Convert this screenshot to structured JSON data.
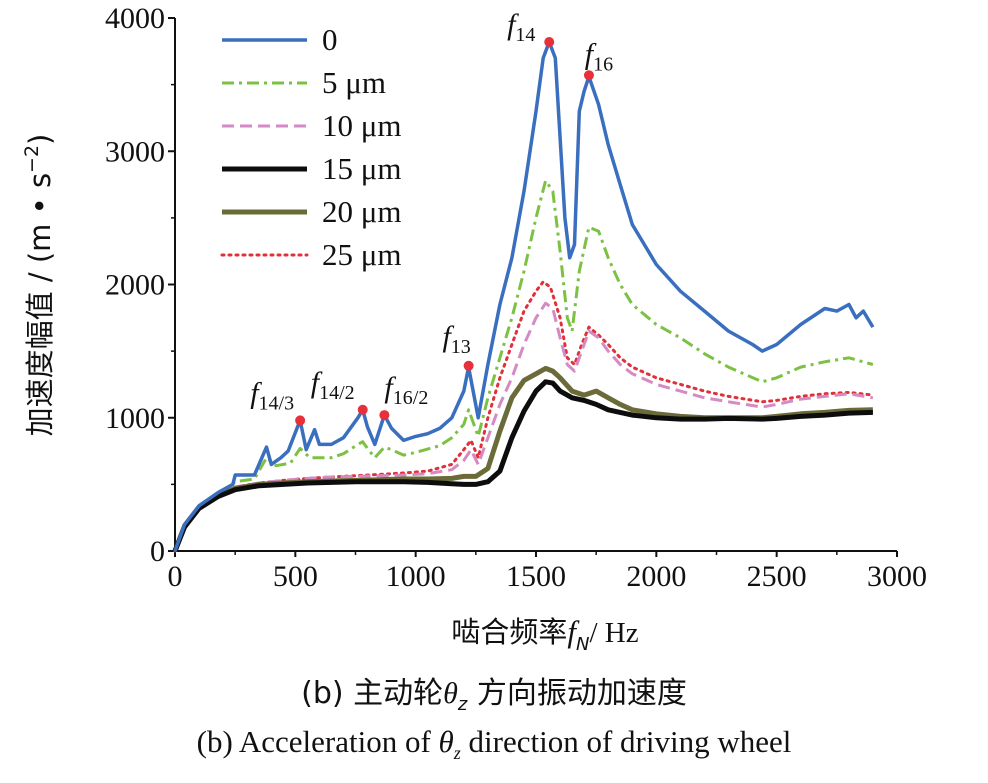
{
  "chart_data": {
    "type": "line",
    "xlabel": "啮合频率",
    "xlabel_var": "f",
    "xlabel_sub": "N",
    "xlabel_unit": "/ Hz",
    "ylabel": "加速度幅值 / (m • s",
    "ylabel_sup": "−2",
    "ylabel_end": ")",
    "xlim": [
      0,
      3000
    ],
    "ylim": [
      0,
      4000
    ],
    "xticks": [
      0,
      500,
      1000,
      1500,
      2000,
      2500,
      3000
    ],
    "yticks": [
      0,
      1000,
      2000,
      3000,
      4000
    ],
    "legend_position": "top-left",
    "grid": false,
    "series": [
      {
        "name": "0",
        "color": "#3a6fc0",
        "dash": "solid",
        "points": [
          [
            0,
            0
          ],
          [
            40,
            200
          ],
          [
            100,
            340
          ],
          [
            180,
            440
          ],
          [
            240,
            500
          ],
          [
            250,
            570
          ],
          [
            330,
            570
          ],
          [
            380,
            780
          ],
          [
            400,
            650
          ],
          [
            440,
            700
          ],
          [
            470,
            750
          ],
          [
            520,
            980
          ],
          [
            545,
            760
          ],
          [
            580,
            910
          ],
          [
            600,
            800
          ],
          [
            650,
            800
          ],
          [
            700,
            850
          ],
          [
            760,
            1000
          ],
          [
            780,
            1060
          ],
          [
            800,
            930
          ],
          [
            830,
            800
          ],
          [
            870,
            1020
          ],
          [
            900,
            920
          ],
          [
            950,
            830
          ],
          [
            1000,
            860
          ],
          [
            1050,
            880
          ],
          [
            1100,
            920
          ],
          [
            1150,
            1000
          ],
          [
            1200,
            1200
          ],
          [
            1220,
            1380
          ],
          [
            1260,
            1000
          ],
          [
            1300,
            1400
          ],
          [
            1350,
            1850
          ],
          [
            1400,
            2200
          ],
          [
            1450,
            2700
          ],
          [
            1500,
            3300
          ],
          [
            1530,
            3700
          ],
          [
            1555,
            3820
          ],
          [
            1580,
            3700
          ],
          [
            1600,
            3100
          ],
          [
            1620,
            2500
          ],
          [
            1640,
            2200
          ],
          [
            1660,
            2300
          ],
          [
            1680,
            3300
          ],
          [
            1700,
            3450
          ],
          [
            1720,
            3560
          ],
          [
            1760,
            3350
          ],
          [
            1800,
            3050
          ],
          [
            1850,
            2750
          ],
          [
            1900,
            2450
          ],
          [
            2000,
            2150
          ],
          [
            2100,
            1950
          ],
          [
            2200,
            1800
          ],
          [
            2300,
            1650
          ],
          [
            2400,
            1550
          ],
          [
            2440,
            1500
          ],
          [
            2500,
            1550
          ],
          [
            2600,
            1700
          ],
          [
            2700,
            1820
          ],
          [
            2750,
            1800
          ],
          [
            2800,
            1850
          ],
          [
            2830,
            1750
          ],
          [
            2860,
            1800
          ],
          [
            2900,
            1680
          ]
        ]
      },
      {
        "name": "5 μm",
        "color": "#7cc142",
        "dash": "dashdot",
        "points": [
          [
            0,
            0
          ],
          [
            40,
            200
          ],
          [
            100,
            340
          ],
          [
            180,
            430
          ],
          [
            250,
            520
          ],
          [
            330,
            540
          ],
          [
            380,
            700
          ],
          [
            420,
            640
          ],
          [
            480,
            660
          ],
          [
            520,
            770
          ],
          [
            560,
            700
          ],
          [
            600,
            700
          ],
          [
            650,
            700
          ],
          [
            700,
            730
          ],
          [
            760,
            800
          ],
          [
            780,
            820
          ],
          [
            800,
            770
          ],
          [
            830,
            700
          ],
          [
            870,
            780
          ],
          [
            900,
            760
          ],
          [
            950,
            720
          ],
          [
            1000,
            740
          ],
          [
            1100,
            790
          ],
          [
            1150,
            850
          ],
          [
            1200,
            950
          ],
          [
            1220,
            1060
          ],
          [
            1260,
            860
          ],
          [
            1300,
            1150
          ],
          [
            1350,
            1450
          ],
          [
            1400,
            1750
          ],
          [
            1450,
            2100
          ],
          [
            1500,
            2500
          ],
          [
            1540,
            2780
          ],
          [
            1570,
            2700
          ],
          [
            1600,
            2250
          ],
          [
            1630,
            1750
          ],
          [
            1650,
            1650
          ],
          [
            1680,
            2100
          ],
          [
            1720,
            2430
          ],
          [
            1760,
            2400
          ],
          [
            1800,
            2200
          ],
          [
            1850,
            2000
          ],
          [
            1900,
            1850
          ],
          [
            2000,
            1700
          ],
          [
            2100,
            1600
          ],
          [
            2200,
            1480
          ],
          [
            2300,
            1380
          ],
          [
            2440,
            1270
          ],
          [
            2500,
            1300
          ],
          [
            2600,
            1380
          ],
          [
            2700,
            1420
          ],
          [
            2800,
            1450
          ],
          [
            2900,
            1400
          ]
        ]
      },
      {
        "name": "10 μm",
        "color": "#d58ac4",
        "dash": "dash",
        "points": [
          [
            0,
            0
          ],
          [
            40,
            190
          ],
          [
            100,
            330
          ],
          [
            180,
            420
          ],
          [
            250,
            480
          ],
          [
            350,
            510
          ],
          [
            450,
            530
          ],
          [
            550,
            545
          ],
          [
            650,
            555
          ],
          [
            750,
            560
          ],
          [
            850,
            565
          ],
          [
            950,
            570
          ],
          [
            1050,
            580
          ],
          [
            1150,
            610
          ],
          [
            1200,
            680
          ],
          [
            1230,
            760
          ],
          [
            1260,
            650
          ],
          [
            1300,
            850
          ],
          [
            1350,
            1100
          ],
          [
            1400,
            1300
          ],
          [
            1450,
            1550
          ],
          [
            1500,
            1750
          ],
          [
            1540,
            1860
          ],
          [
            1570,
            1820
          ],
          [
            1600,
            1600
          ],
          [
            1630,
            1400
          ],
          [
            1660,
            1350
          ],
          [
            1690,
            1500
          ],
          [
            1720,
            1650
          ],
          [
            1760,
            1600
          ],
          [
            1800,
            1500
          ],
          [
            1850,
            1400
          ],
          [
            1900,
            1330
          ],
          [
            2000,
            1250
          ],
          [
            2100,
            1200
          ],
          [
            2200,
            1150
          ],
          [
            2300,
            1120
          ],
          [
            2440,
            1080
          ],
          [
            2500,
            1100
          ],
          [
            2600,
            1140
          ],
          [
            2700,
            1160
          ],
          [
            2800,
            1180
          ],
          [
            2900,
            1150
          ]
        ]
      },
      {
        "name": "15 μm",
        "color": "#0d0d0d",
        "dash": "solid-thick",
        "points": [
          [
            0,
            0
          ],
          [
            40,
            180
          ],
          [
            100,
            320
          ],
          [
            180,
            410
          ],
          [
            250,
            460
          ],
          [
            350,
            490
          ],
          [
            450,
            500
          ],
          [
            550,
            510
          ],
          [
            650,
            515
          ],
          [
            750,
            520
          ],
          [
            850,
            520
          ],
          [
            950,
            520
          ],
          [
            1050,
            515
          ],
          [
            1150,
            505
          ],
          [
            1200,
            500
          ],
          [
            1250,
            500
          ],
          [
            1300,
            520
          ],
          [
            1350,
            600
          ],
          [
            1400,
            850
          ],
          [
            1450,
            1050
          ],
          [
            1500,
            1200
          ],
          [
            1540,
            1270
          ],
          [
            1570,
            1260
          ],
          [
            1600,
            1200
          ],
          [
            1650,
            1150
          ],
          [
            1700,
            1130
          ],
          [
            1750,
            1100
          ],
          [
            1800,
            1060
          ],
          [
            1850,
            1040
          ],
          [
            1900,
            1020
          ],
          [
            2000,
            1000
          ],
          [
            2100,
            990
          ],
          [
            2200,
            990
          ],
          [
            2300,
            995
          ],
          [
            2440,
            990
          ],
          [
            2500,
            995
          ],
          [
            2600,
            1010
          ],
          [
            2700,
            1020
          ],
          [
            2800,
            1035
          ],
          [
            2900,
            1040
          ]
        ]
      },
      {
        "name": "20 μm",
        "color": "#6b6b3a",
        "dash": "solid-thick",
        "points": [
          [
            0,
            0
          ],
          [
            40,
            190
          ],
          [
            100,
            330
          ],
          [
            180,
            420
          ],
          [
            250,
            470
          ],
          [
            350,
            500
          ],
          [
            450,
            510
          ],
          [
            550,
            520
          ],
          [
            650,
            525
          ],
          [
            750,
            530
          ],
          [
            850,
            535
          ],
          [
            950,
            540
          ],
          [
            1050,
            540
          ],
          [
            1150,
            545
          ],
          [
            1200,
            560
          ],
          [
            1250,
            560
          ],
          [
            1300,
            620
          ],
          [
            1350,
            900
          ],
          [
            1400,
            1150
          ],
          [
            1450,
            1280
          ],
          [
            1500,
            1330
          ],
          [
            1540,
            1370
          ],
          [
            1570,
            1350
          ],
          [
            1600,
            1300
          ],
          [
            1650,
            1200
          ],
          [
            1700,
            1170
          ],
          [
            1750,
            1200
          ],
          [
            1800,
            1150
          ],
          [
            1850,
            1100
          ],
          [
            1900,
            1060
          ],
          [
            2000,
            1030
          ],
          [
            2100,
            1010
          ],
          [
            2200,
            1000
          ],
          [
            2300,
            1000
          ],
          [
            2440,
            1000
          ],
          [
            2500,
            1010
          ],
          [
            2600,
            1030
          ],
          [
            2700,
            1040
          ],
          [
            2800,
            1055
          ],
          [
            2900,
            1060
          ]
        ]
      },
      {
        "name": "25 μm",
        "color": "#e0303a",
        "dash": "dot",
        "points": [
          [
            0,
            0
          ],
          [
            40,
            190
          ],
          [
            100,
            330
          ],
          [
            180,
            420
          ],
          [
            250,
            480
          ],
          [
            350,
            510
          ],
          [
            450,
            530
          ],
          [
            550,
            545
          ],
          [
            650,
            555
          ],
          [
            750,
            565
          ],
          [
            850,
            575
          ],
          [
            950,
            585
          ],
          [
            1050,
            600
          ],
          [
            1150,
            650
          ],
          [
            1200,
            760
          ],
          [
            1230,
            830
          ],
          [
            1260,
            700
          ],
          [
            1300,
            1000
          ],
          [
            1350,
            1300
          ],
          [
            1400,
            1550
          ],
          [
            1450,
            1800
          ],
          [
            1500,
            1950
          ],
          [
            1530,
            2020
          ],
          [
            1560,
            1980
          ],
          [
            1600,
            1750
          ],
          [
            1630,
            1450
          ],
          [
            1660,
            1400
          ],
          [
            1690,
            1550
          ],
          [
            1720,
            1680
          ],
          [
            1760,
            1620
          ],
          [
            1800,
            1550
          ],
          [
            1850,
            1450
          ],
          [
            1900,
            1380
          ],
          [
            2000,
            1300
          ],
          [
            2100,
            1250
          ],
          [
            2200,
            1200
          ],
          [
            2300,
            1160
          ],
          [
            2440,
            1120
          ],
          [
            2500,
            1130
          ],
          [
            2600,
            1160
          ],
          [
            2700,
            1180
          ],
          [
            2800,
            1190
          ],
          [
            2900,
            1170
          ]
        ]
      }
    ],
    "peaks": [
      {
        "label": "f",
        "sub": "14/3",
        "x": 520,
        "y": 980
      },
      {
        "label": "f",
        "sub": "14/2",
        "x": 780,
        "y": 1060
      },
      {
        "label": "f",
        "sub": "16/2",
        "x": 870,
        "y": 1020
      },
      {
        "label": "f",
        "sub": "13",
        "x": 1220,
        "y": 1390
      },
      {
        "label": "f",
        "sub": "14",
        "x": 1555,
        "y": 3820
      },
      {
        "label": "f",
        "sub": "16",
        "x": 1720,
        "y": 3570
      }
    ]
  },
  "captions": {
    "cn_pre": "(b) 主动轮",
    "cn_var": "θ",
    "cn_sub": "z",
    "cn_post": " 方向振动加速度",
    "en_pre": "(b) Acceleration of ",
    "en_var": "θ",
    "en_sub": "z",
    "en_post": " direction of driving wheel"
  }
}
